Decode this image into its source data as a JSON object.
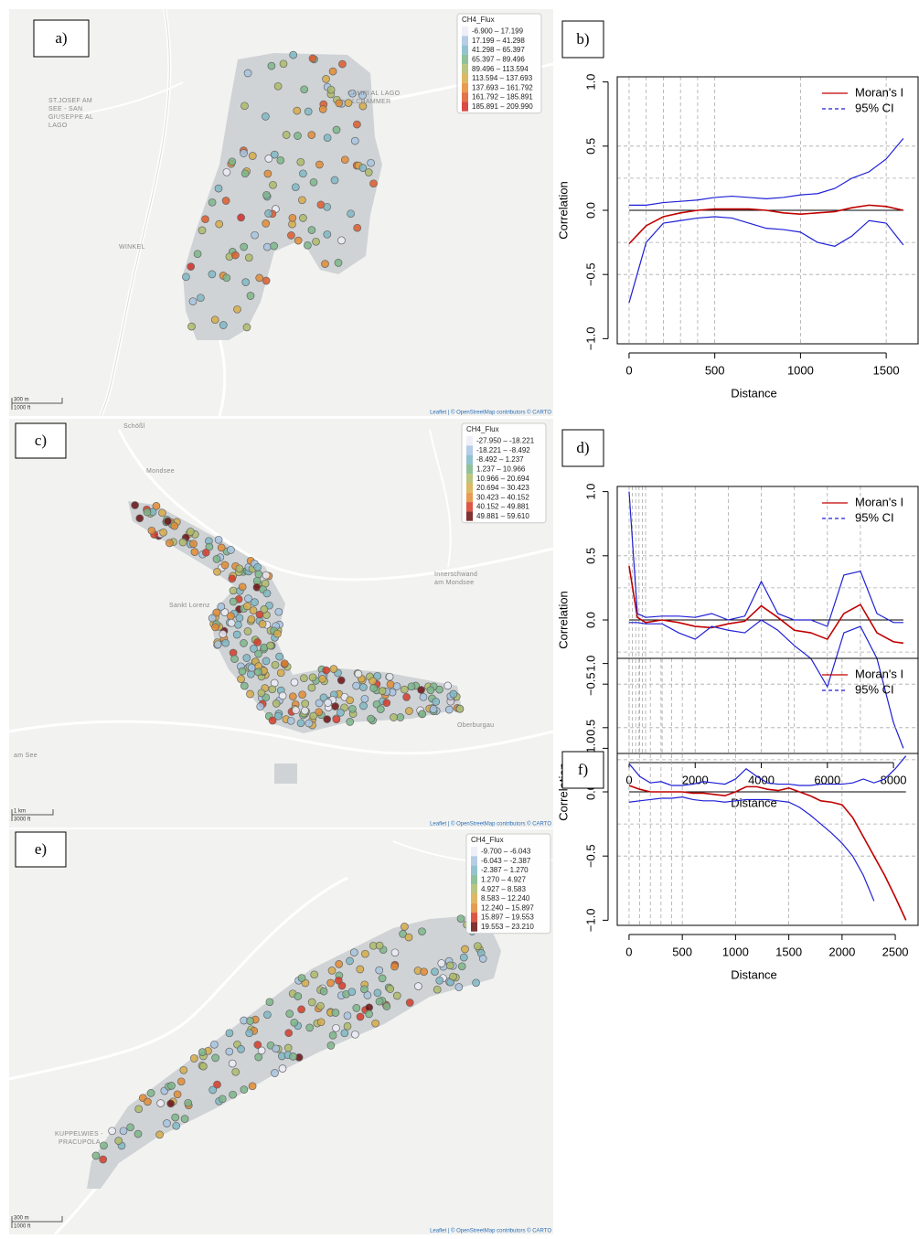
{
  "maps": [
    {
      "panel": "a)",
      "legend": {
        "title": "CH4_Flux",
        "items": [
          {
            "label": "-6.900 – 17.199",
            "color": "#ececf7"
          },
          {
            "label": "17.199 – 41.298",
            "color": "#a8c4e2"
          },
          {
            "label": "41.298 – 65.397",
            "color": "#7fb8c6"
          },
          {
            "label": "65.397 – 89.496",
            "color": "#7db68a"
          },
          {
            "label": "89.496 – 113.594",
            "color": "#aebb68"
          },
          {
            "label": "113.594 – 137.693",
            "color": "#d8ac48"
          },
          {
            "label": "137.693 – 161.792",
            "color": "#e38b33"
          },
          {
            "label": "161.792 – 185.891",
            "color": "#de5a2c"
          },
          {
            "label": "185.891 – 209.990",
            "color": "#d32a26"
          }
        ]
      },
      "places": [
        "ST.JOSEF AM",
        "SEE - SAN",
        "GIUSEPPE AL",
        "LAGO",
        "CAMPI AL LAGO",
        "LCHAMMER",
        "WINKEL"
      ],
      "scale": [
        "300 m",
        "1000 ft"
      ],
      "attribution": "Leaflet | © OpenStreetMap contributors © CARTO"
    },
    {
      "panel": "c)",
      "legend": {
        "title": "CH4_Flux",
        "items": [
          {
            "label": "-27.950 – -18.221",
            "color": "#ececf7"
          },
          {
            "label": "-18.221 – -8.492",
            "color": "#a8c4e2"
          },
          {
            "label": "-8.492 – 1.237",
            "color": "#7fb8c6"
          },
          {
            "label": "1.237 – 10.966",
            "color": "#7db68a"
          },
          {
            "label": "10.966 – 20.694",
            "color": "#aebb68"
          },
          {
            "label": "20.694 – 30.423",
            "color": "#d8ac48"
          },
          {
            "label": "30.423 – 40.152",
            "color": "#e38b33"
          },
          {
            "label": "40.152 – 49.881",
            "color": "#d63a26"
          },
          {
            "label": "49.881 – 59.610",
            "color": "#6b0f10"
          }
        ]
      },
      "places": [
        "Schößl",
        "Mondsee",
        "Innerschwand",
        "am Mondsee",
        "Sankt Lorenz",
        "Oberburgau",
        "am See"
      ],
      "scale": [
        "1 km",
        "3000 ft"
      ],
      "attribution": "Leaflet | © OpenStreetMap contributors © CARTO"
    },
    {
      "panel": "e)",
      "legend": {
        "title": "CH4_Flux",
        "items": [
          {
            "label": "-9.700 – -6.043",
            "color": "#ececf7"
          },
          {
            "label": "-6.043 – -2.387",
            "color": "#a8c4e2"
          },
          {
            "label": "-2.387 – 1.270",
            "color": "#7fb8c6"
          },
          {
            "label": "1.270 – 4.927",
            "color": "#7db68a"
          },
          {
            "label": "4.927 – 8.583",
            "color": "#aebb68"
          },
          {
            "label": "8.583 – 12.240",
            "color": "#d8ac48"
          },
          {
            "label": "12.240 – 15.897",
            "color": "#e38b33"
          },
          {
            "label": "15.897 – 19.553",
            "color": "#d63a26"
          },
          {
            "label": "19.553 – 23.210",
            "color": "#6b0f10"
          }
        ]
      },
      "places": [
        "KUPPELWIES -",
        "PRACUPOLA"
      ],
      "scale": [
        "300 m",
        "1000 ft"
      ],
      "attribution": "Leaflet | © OpenStreetMap contributors © CARTO"
    }
  ],
  "chart_data": [
    {
      "type": "line",
      "panel": "b)",
      "xlabel": "Distance",
      "ylabel": "Correlation",
      "xlim": [
        -69,
        1686
      ],
      "xticks": [
        0,
        500,
        1000,
        1500
      ],
      "ylim": [
        -1.04,
        1.04
      ],
      "yticks": [
        {
          "value": -1,
          "label": "−1.0"
        },
        {
          "value": -0.5,
          "label": "−0.5"
        },
        {
          "value": 0,
          "label": "0.0"
        },
        0.5,
        {
          "value": 1,
          "label": "1.0"
        }
      ],
      "grid_x": [
        0,
        100,
        200,
        300,
        400,
        500,
        1000,
        1500
      ],
      "grid_y": [
        -0.5,
        -0.25,
        0.25,
        0.5
      ],
      "hline": 0,
      "legend_position": "top-right",
      "x": [
        0,
        100,
        200,
        300,
        400,
        500,
        600,
        700,
        800,
        900,
        1000,
        1100,
        1200,
        1300,
        1400,
        1500,
        1600
      ],
      "series": [
        {
          "name": "Moran's I",
          "color": "#c00000",
          "style": "solid",
          "values": [
            -0.26,
            -0.12,
            -0.05,
            -0.02,
            0,
            0.01,
            0.01,
            0.01,
            0,
            -0.02,
            -0.03,
            -0.02,
            -0.01,
            0.02,
            0.04,
            0.03,
            0
          ]
        },
        {
          "name": "95% CI",
          "color": "#1f1fd6",
          "style": "dashed",
          "values": [
            0.04,
            0.04,
            0.06,
            0.07,
            0.08,
            0.1,
            0.11,
            0.1,
            0.09,
            0.1,
            0.12,
            0.13,
            0.17,
            0.25,
            0.3,
            0.4,
            0.56
          ],
          "lower": [
            -0.72,
            -0.25,
            -0.1,
            -0.08,
            -0.06,
            -0.05,
            -0.06,
            -0.1,
            -0.14,
            -0.15,
            -0.17,
            -0.25,
            -0.28,
            -0.2,
            -0.08,
            -0.1,
            -0.27
          ]
        }
      ]
    },
    {
      "type": "line",
      "panel": "d)",
      "xlabel": "Distance",
      "ylabel": "Correlation",
      "xlim": [
        -359,
        8745
      ],
      "xticks": [
        0,
        2000,
        4000,
        6000,
        8000
      ],
      "ylim": [
        -1.04,
        1.04
      ],
      "yticks": [
        {
          "value": -1,
          "label": "−1.0"
        },
        {
          "value": -0.5,
          "label": "−0.5"
        },
        {
          "value": 0,
          "label": "0.0"
        },
        0.5,
        {
          "value": 1,
          "label": "1.0"
        }
      ],
      "grid_x": [
        0,
        100,
        200,
        300,
        400,
        500,
        1000,
        2000,
        3000,
        4000,
        5000,
        6000,
        7000
      ],
      "grid_y": [
        -0.5,
        -0.25,
        0.25,
        0.5
      ],
      "hline": 0,
      "legend_position": "top-right",
      "x": [
        0,
        250,
        500,
        1000,
        1500,
        2000,
        2500,
        3000,
        3500,
        4000,
        4500,
        5000,
        5500,
        6000,
        6500,
        7000,
        7500,
        8000,
        8300
      ],
      "series": [
        {
          "name": "Moran's I",
          "color": "#c00000",
          "style": "solid",
          "values": [
            0.42,
            0.02,
            -0.02,
            0,
            -0.02,
            -0.05,
            -0.06,
            -0.03,
            -0.01,
            0.11,
            0.02,
            -0.08,
            -0.1,
            -0.15,
            0.05,
            0.12,
            -0.1,
            -0.17,
            -0.18
          ]
        },
        {
          "name": "95% CI",
          "color": "#1f1fd6",
          "style": "dashed",
          "values": [
            1,
            0.05,
            0.02,
            0.03,
            0.03,
            0.02,
            0.05,
            0,
            0.03,
            0.3,
            0.05,
            0,
            0,
            -0.05,
            0.35,
            0.38,
            0.05,
            -0.02,
            -0.02
          ],
          "lower": [
            -0.02,
            -0.02,
            -0.03,
            -0.03,
            -0.1,
            -0.15,
            -0.05,
            -0.08,
            -0.1,
            0,
            -0.08,
            -0.2,
            -0.3,
            -0.52,
            -0.1,
            -0.05,
            -0.3,
            -0.8,
            -1
          ]
        }
      ]
    },
    {
      "type": "line",
      "panel": "f)",
      "xlabel": "Distance",
      "ylabel": "Correlation",
      "xlim": [
        -111,
        2714
      ],
      "xticks": [
        0,
        500,
        1000,
        1500,
        2000,
        2500
      ],
      "ylim": [
        -1.04,
        1.04
      ],
      "yticks": [
        {
          "value": -1,
          "label": "−1.0"
        },
        {
          "value": -0.5,
          "label": "−0.5"
        },
        {
          "value": 0,
          "label": "0.0"
        },
        0.5,
        {
          "value": 1,
          "label": "1.0"
        }
      ],
      "grid_x": [
        0,
        100,
        200,
        300,
        400,
        500,
        1000,
        1500,
        2000
      ],
      "grid_y": [
        -0.5,
        -0.25,
        0.25,
        0.5
      ],
      "hline": 0,
      "legend_position": "top-right",
      "x": [
        0,
        100,
        200,
        300,
        400,
        500,
        600,
        700,
        800,
        900,
        1000,
        1100,
        1200,
        1300,
        1400,
        1500,
        1600,
        1700,
        1800,
        1900,
        2000,
        2100,
        2200,
        2300,
        2400,
        2500,
        2600
      ],
      "series": [
        {
          "name": "Moran's I",
          "color": "#c00000",
          "style": "solid",
          "values": [
            0.05,
            0.02,
            0,
            0,
            0,
            0,
            -0.01,
            -0.01,
            -0.02,
            -0.03,
            0,
            0.04,
            0.04,
            0.02,
            0.01,
            0.03,
            0,
            -0.03,
            -0.07,
            -0.08,
            -0.1,
            -0.2,
            -0.35,
            -0.5,
            -0.65,
            -0.82,
            -1
          ]
        },
        {
          "name": "95% CI",
          "color": "#1f1fd6",
          "style": "dashed",
          "values": [
            0.22,
            0.12,
            0.07,
            0.08,
            0.05,
            0.05,
            0.06,
            0.08,
            0.07,
            0.06,
            0.1,
            0.18,
            0.12,
            0.07,
            0.06,
            0.06,
            0.05,
            0.05,
            0.06,
            0.06,
            0.06,
            0.07,
            0.1,
            0.07,
            0.1,
            0.18,
            0.28
          ],
          "lower": [
            -0.08,
            -0.07,
            -0.06,
            -0.05,
            -0.05,
            -0.04,
            -0.06,
            -0.07,
            -0.07,
            -0.08,
            -0.07,
            -0.06,
            -0.06,
            -0.06,
            -0.07,
            -0.08,
            -0.12,
            -0.18,
            -0.25,
            -0.32,
            -0.4,
            -0.5,
            -0.65,
            -0.85,
            null,
            null,
            null
          ]
        }
      ]
    }
  ]
}
